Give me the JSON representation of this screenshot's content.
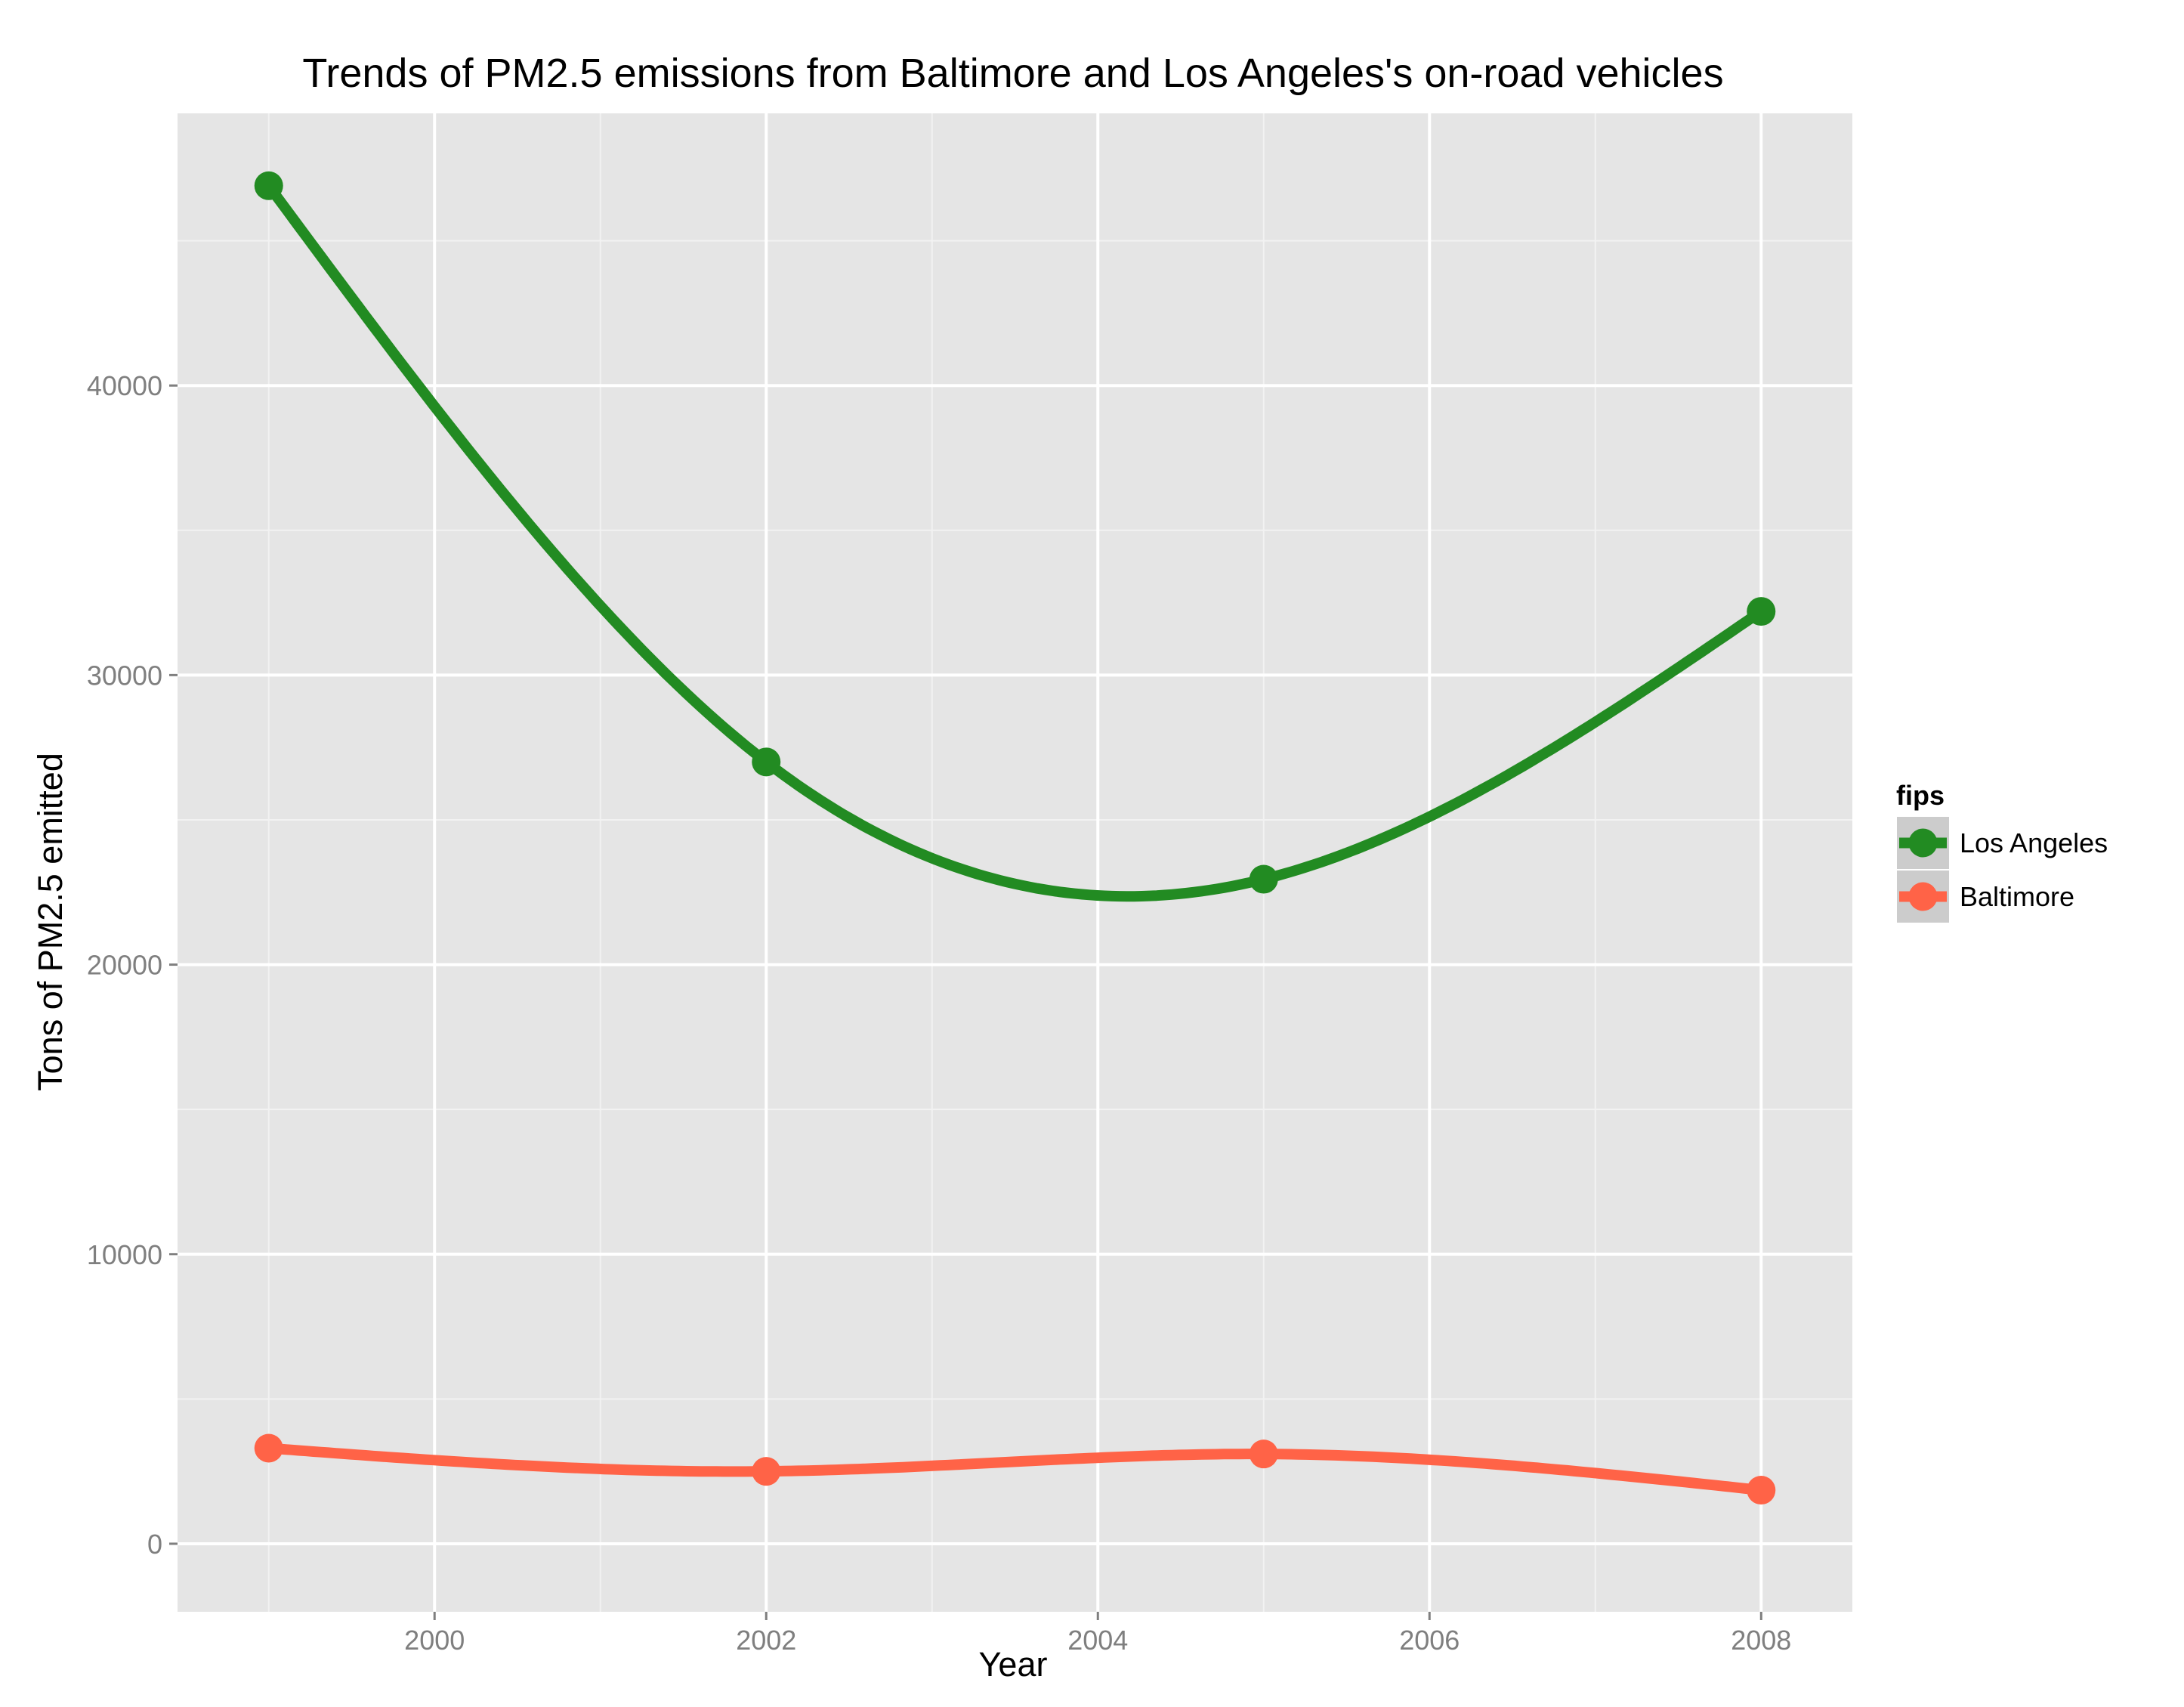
{
  "chart_data": {
    "type": "line",
    "title": "Trends of PM2.5 emissions from Baltimore and Los Angeles's on-road vehicles",
    "xlabel": "Year",
    "ylabel": "Tons of PM2.5 emitted",
    "xlim": [
      1998.45,
      2008.55
    ],
    "ylim": [
      -2350,
      49400
    ],
    "x_ticks": [
      2000,
      2002,
      2004,
      2006,
      2008
    ],
    "y_ticks": [
      0,
      10000,
      20000,
      30000,
      40000
    ],
    "x_tick_labels": [
      "2000",
      "2002",
      "2004",
      "2006",
      "2008"
    ],
    "y_tick_labels": [
      "0",
      "10000",
      "20000",
      "30000",
      "40000"
    ],
    "grid": true,
    "smoothed_lines": true,
    "legend": {
      "title": "fips",
      "placement": "right"
    },
    "x": [
      1999,
      2002,
      2005,
      2008
    ],
    "series": [
      {
        "name": "Los Angeles",
        "color": "#228b22",
        "values": [
          46900,
          27000,
          22950,
          32200
        ]
      },
      {
        "name": "Baltimore",
        "color": "#ff6347",
        "values": [
          3300,
          2500,
          3100,
          1850
        ]
      }
    ]
  }
}
